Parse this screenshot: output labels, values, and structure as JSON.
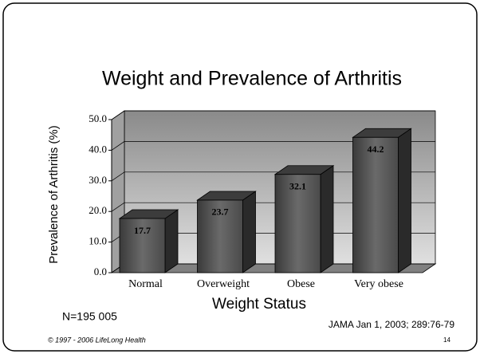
{
  "chart_data": {
    "type": "bar3d",
    "title": "Weight and Prevalence of Arthritis",
    "y_label": "Prevalence of Arthritis  (%)",
    "x_label": "Weight Status",
    "categories": [
      "Normal",
      "Overweight",
      "Obese",
      "Very obese"
    ],
    "values": [
      17.7,
      23.7,
      32.1,
      44.2
    ],
    "color": "#555555",
    "ylim": [
      0,
      50
    ],
    "yticks": [
      {
        "value": 0,
        "label": "0.0"
      },
      {
        "value": 10,
        "label": "10.0"
      },
      {
        "value": 20,
        "label": "20.0"
      },
      {
        "value": 30,
        "label": "30.0"
      },
      {
        "value": 40,
        "label": "40.0"
      },
      {
        "value": 50,
        "label": "50.0"
      }
    ],
    "grid": true
  },
  "footer": {
    "sample": "N=195 005",
    "source": "JAMA Jan 1, 2003; 289:76-79",
    "copyright": "© 1997 - 2006 LifeLong Health",
    "page": "14"
  }
}
